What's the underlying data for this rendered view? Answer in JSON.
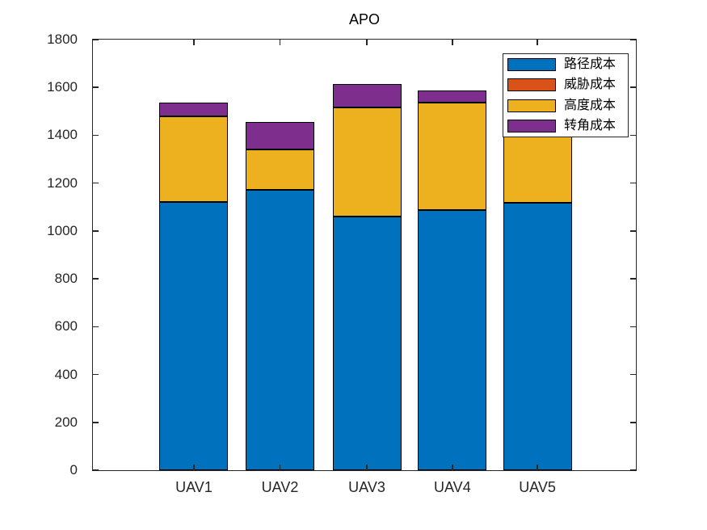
{
  "chart_data": {
    "type": "bar",
    "stacked": true,
    "title": "APO",
    "categories": [
      "UAV1",
      "UAV2",
      "UAV3",
      "UAV4",
      "UAV5"
    ],
    "series": [
      {
        "key": "path-cost",
        "name": "路径成本",
        "color": "#0072BD",
        "values": [
          1122,
          1172,
          1061,
          1088,
          1118
        ]
      },
      {
        "key": "threat-cost",
        "name": "威胁成本",
        "color": "#D95319",
        "values": [
          0,
          0,
          0,
          0,
          0
        ]
      },
      {
        "key": "altitude-cost",
        "name": "高度成本",
        "color": "#EDB120",
        "values": [
          356,
          168,
          454,
          447,
          362
        ]
      },
      {
        "key": "turn-cost",
        "name": "转角成本",
        "color": "#7E2F8E",
        "values": [
          57,
          115,
          98,
          51,
          60
        ]
      }
    ],
    "totals": [
      1535,
      1455,
      1613,
      1586,
      1540
    ],
    "xlabel": "",
    "ylabel": "",
    "ylim": [
      0,
      1800
    ],
    "ytick_step": 200,
    "y_tick_labels": [
      "0",
      "200",
      "400",
      "600",
      "800",
      "1000",
      "1200",
      "1400",
      "1600",
      "1800"
    ],
    "grid": false,
    "legend_position": "northeast",
    "bar_edge_color": "#000000",
    "axis_color": "#262626"
  }
}
